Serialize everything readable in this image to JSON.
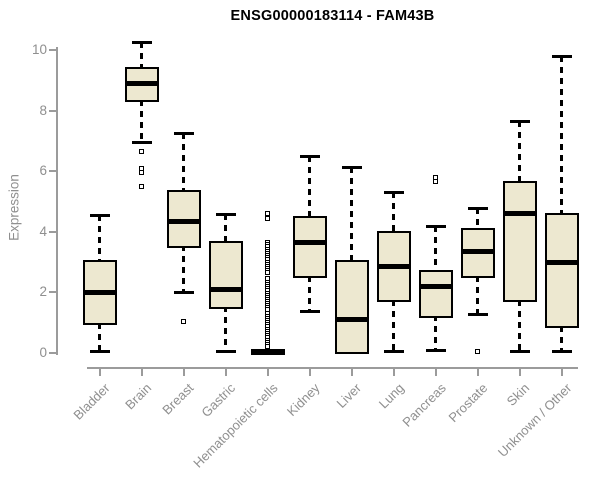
{
  "chart_data": {
    "type": "boxplot",
    "title": "ENSG00000183114 - FAM43B",
    "ylabel": "Expression",
    "ylim": [
      0,
      10.4
    ],
    "yticks": [
      0,
      2,
      4,
      6,
      8,
      10
    ],
    "grid": false,
    "legend": null,
    "categories": [
      "Bladder",
      "Brain",
      "Breast",
      "Gastric",
      "Hematopoietic cells",
      "Kidney",
      "Liver",
      "Lung",
      "Pancreas",
      "Prostate",
      "Skin",
      "Unknown / Other"
    ],
    "series": [
      {
        "name": "Bladder",
        "min": 0.05,
        "q1": 1.0,
        "median": 2.0,
        "q3": 3.0,
        "max": 4.55,
        "outliers": []
      },
      {
        "name": "Brain",
        "min": 6.95,
        "q1": 8.35,
        "median": 8.9,
        "q3": 9.35,
        "max": 10.25,
        "outliers": [
          6.65,
          6.1,
          5.95,
          5.5
        ]
      },
      {
        "name": "Breast",
        "min": 2.0,
        "q1": 3.55,
        "median": 4.35,
        "q3": 5.3,
        "max": 7.25,
        "outliers": [
          1.05
        ]
      },
      {
        "name": "Gastric",
        "min": 0.05,
        "q1": 1.55,
        "median": 2.1,
        "q3": 3.6,
        "max": 4.6,
        "outliers": []
      },
      {
        "name": "Hematopoietic cells",
        "min": 0,
        "q1": 0,
        "median": 0.02,
        "q3": 0.05,
        "max": 0.1,
        "outliers": [
          4.6,
          4.45,
          3.65,
          3.57,
          3.5,
          3.43,
          3.36,
          3.29,
          3.22,
          3.15,
          3.08,
          3.0,
          2.93,
          2.86,
          2.79,
          2.72,
          2.65,
          2.45,
          2.33,
          2.26,
          2.19,
          2.12,
          2.05,
          1.98,
          1.91,
          1.84,
          1.77,
          1.7,
          1.63,
          1.56,
          1.49,
          1.42,
          1.3,
          1.22,
          1.15,
          1.08,
          1.0,
          0.93,
          0.86,
          0.79,
          0.72,
          0.65,
          0.58,
          0.5,
          0.42,
          0.35,
          0.28,
          0.2
        ]
      },
      {
        "name": "Kidney",
        "min": 1.4,
        "q1": 2.55,
        "median": 3.65,
        "q3": 4.45,
        "max": 6.5,
        "outliers": []
      },
      {
        "name": "Liver",
        "min": 0.02,
        "q1": 0.05,
        "median": 1.1,
        "q3": 3.0,
        "max": 6.15,
        "outliers": []
      },
      {
        "name": "Lung",
        "min": 0.05,
        "q1": 1.75,
        "median": 2.85,
        "q3": 3.95,
        "max": 5.3,
        "outliers": []
      },
      {
        "name": "Pancreas",
        "min": 0.1,
        "q1": 1.25,
        "median": 2.2,
        "q3": 2.65,
        "max": 4.2,
        "outliers": [
          5.8,
          5.65
        ]
      },
      {
        "name": "Prostate",
        "min": 1.3,
        "q1": 2.55,
        "median": 3.35,
        "q3": 4.05,
        "max": 4.8,
        "outliers": [
          0.05
        ]
      },
      {
        "name": "Skin",
        "min": 0.05,
        "q1": 1.75,
        "median": 4.6,
        "q3": 5.6,
        "max": 7.65,
        "outliers": []
      },
      {
        "name": "Unknown / Other",
        "min": 0.05,
        "q1": 0.9,
        "median": 3.0,
        "q3": 4.55,
        "max": 9.8,
        "outliers": []
      }
    ],
    "colors": {
      "box_fill": "#EDE8D0",
      "box_stroke": "#000000",
      "axis": "#9B9B9B",
      "tick_text": "#8F8F8F",
      "title": "#000000",
      "background": "#FFFFFF"
    }
  }
}
